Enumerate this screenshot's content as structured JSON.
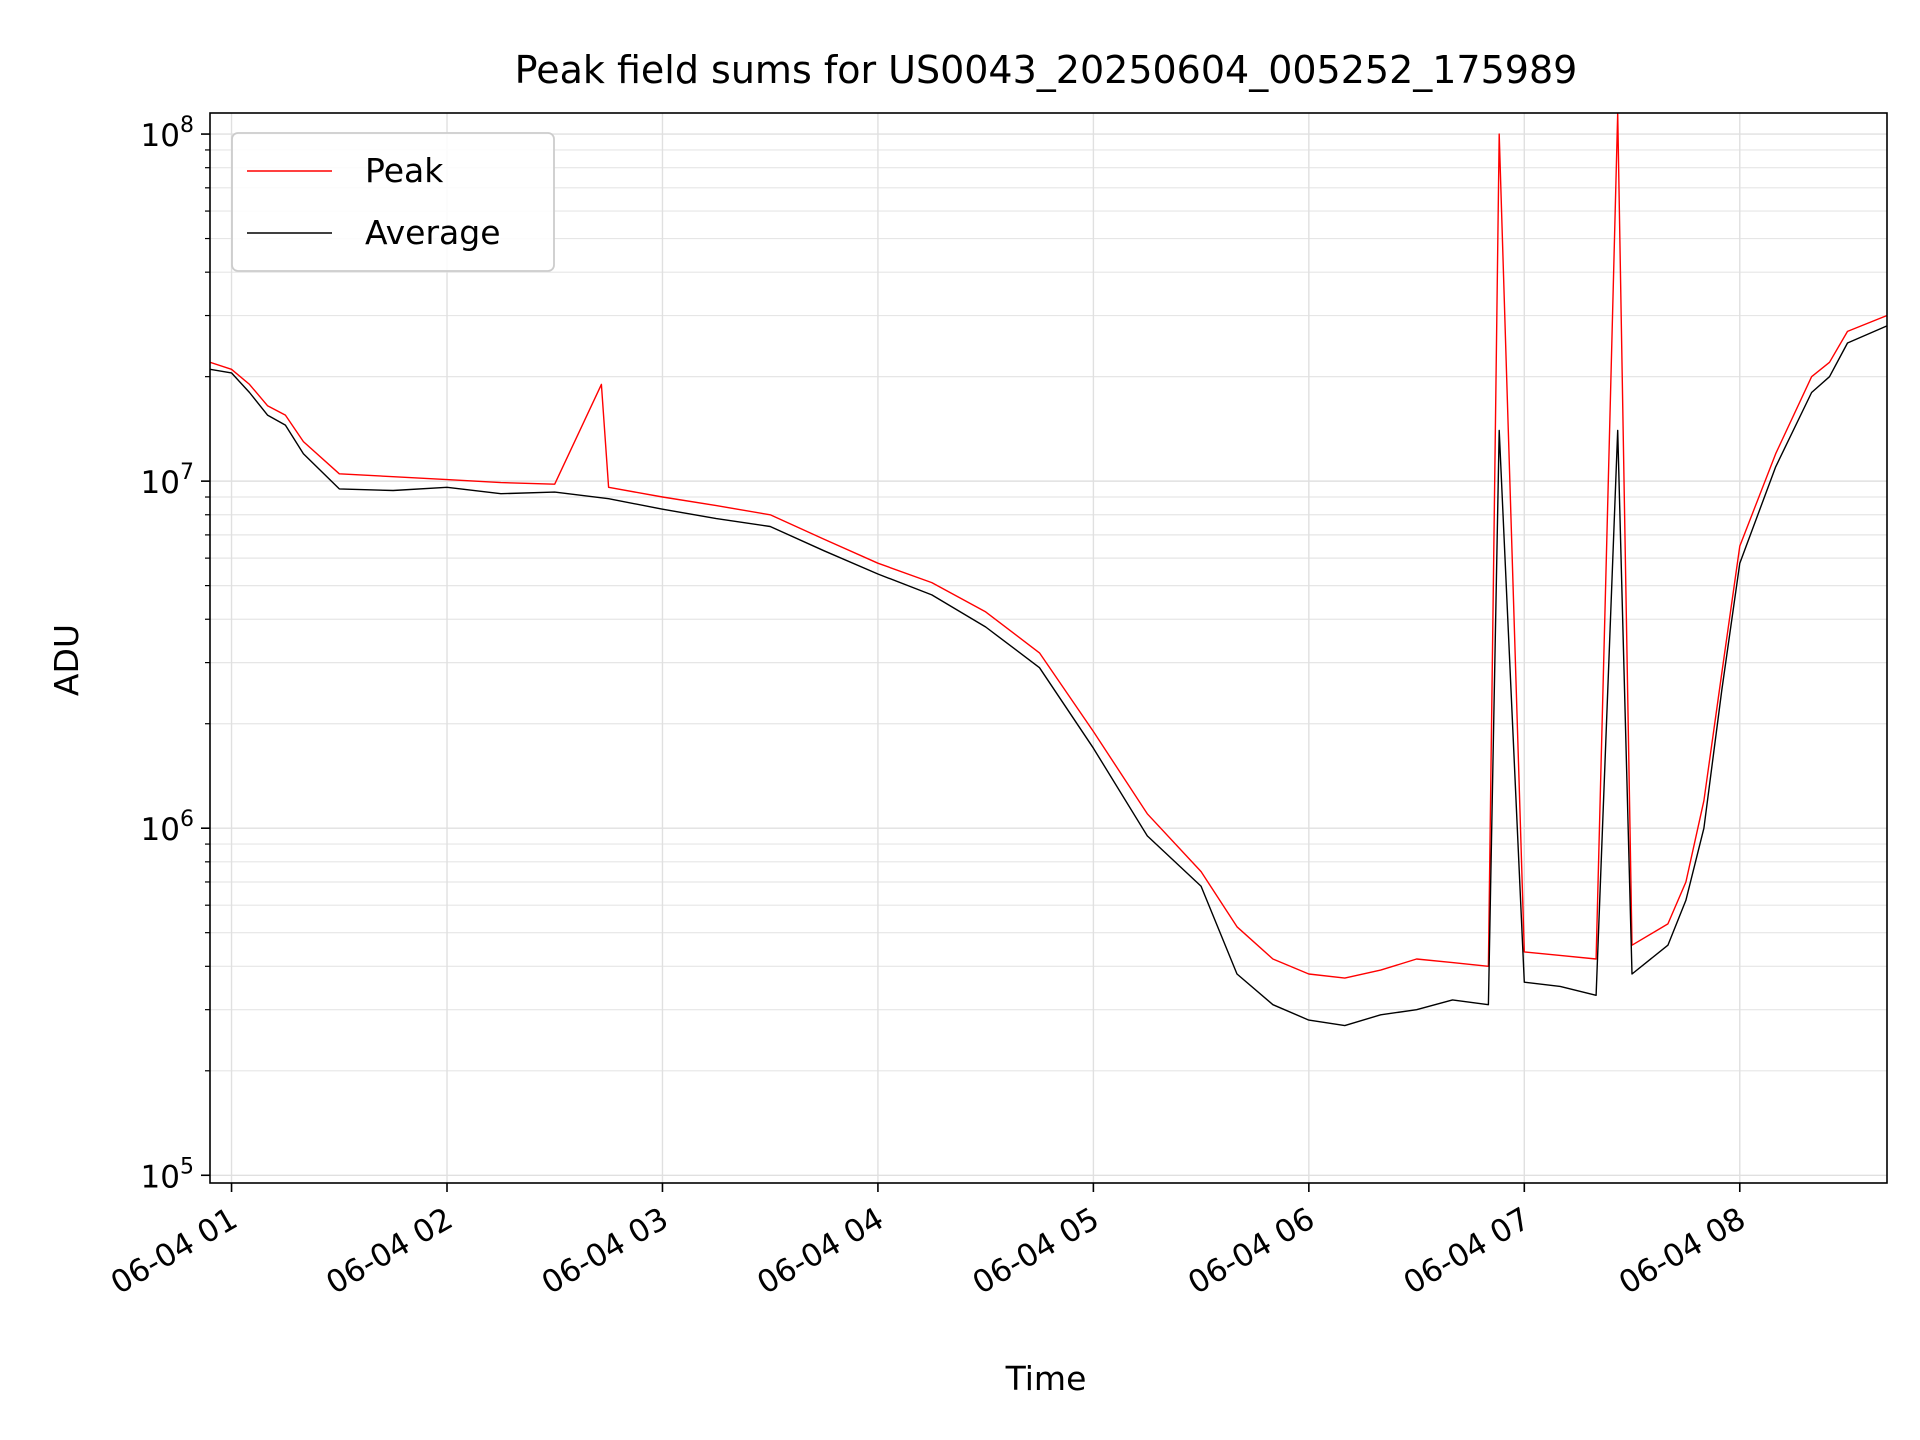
{
  "chart_data": {
    "type": "line",
    "title": "Peak field sums for US0043_20250604_005252_175989",
    "xlabel": "Time",
    "ylabel": "ADU",
    "yscale": "log",
    "ylim": [
      95000,
      115000000
    ],
    "xlim": [
      "2025-06-04 00:54",
      "2025-06-04 08:41"
    ],
    "x_ticks": [
      {
        "t": "2025-06-04 01:00",
        "label": "06-04 01"
      },
      {
        "t": "2025-06-04 02:00",
        "label": "06-04 02"
      },
      {
        "t": "2025-06-04 03:00",
        "label": "06-04 03"
      },
      {
        "t": "2025-06-04 04:00",
        "label": "06-04 04"
      },
      {
        "t": "2025-06-04 05:00",
        "label": "06-04 05"
      },
      {
        "t": "2025-06-04 06:00",
        "label": "06-04 06"
      },
      {
        "t": "2025-06-04 07:00",
        "label": "06-04 07"
      },
      {
        "t": "2025-06-04 08:00",
        "label": "06-04 08"
      }
    ],
    "y_ticks": [
      {
        "value": 100000,
        "base": "10",
        "exp": "5"
      },
      {
        "value": 1000000,
        "base": "10",
        "exp": "6"
      },
      {
        "value": 10000000,
        "base": "10",
        "exp": "7"
      },
      {
        "value": 100000000,
        "base": "10",
        "exp": "8"
      }
    ],
    "grid": true,
    "legend": {
      "placement": "top-left"
    },
    "series": [
      {
        "name": "Peak",
        "color": "#ff0000",
        "t": [
          "2025-06-04 00:54",
          "2025-06-04 01:00",
          "2025-06-04 01:05",
          "2025-06-04 01:10",
          "2025-06-04 01:15",
          "2025-06-04 01:20",
          "2025-06-04 01:30",
          "2025-06-04 01:45",
          "2025-06-04 02:00",
          "2025-06-04 02:15",
          "2025-06-04 02:30",
          "2025-06-04 02:43",
          "2025-06-04 02:45",
          "2025-06-04 03:00",
          "2025-06-04 03:15",
          "2025-06-04 03:30",
          "2025-06-04 03:45",
          "2025-06-04 04:00",
          "2025-06-04 04:15",
          "2025-06-04 04:30",
          "2025-06-04 04:45",
          "2025-06-04 05:00",
          "2025-06-04 05:15",
          "2025-06-04 05:30",
          "2025-06-04 05:40",
          "2025-06-04 05:50",
          "2025-06-04 06:00",
          "2025-06-04 06:10",
          "2025-06-04 06:20",
          "2025-06-04 06:30",
          "2025-06-04 06:40",
          "2025-06-04 06:50",
          "2025-06-04 06:53",
          "2025-06-04 07:00",
          "2025-06-04 07:10",
          "2025-06-04 07:20",
          "2025-06-04 07:26",
          "2025-06-04 07:30",
          "2025-06-04 07:40",
          "2025-06-04 07:45",
          "2025-06-04 07:50",
          "2025-06-04 07:55",
          "2025-06-04 08:00",
          "2025-06-04 08:10",
          "2025-06-04 08:20",
          "2025-06-04 08:25",
          "2025-06-04 08:30",
          "2025-06-04 08:41"
        ],
        "values": [
          22000000,
          21000000,
          19000000,
          16500000,
          15500000,
          13000000,
          10500000,
          10300000,
          10100000,
          9900000,
          9800000,
          19000000,
          9600000,
          9000000,
          8500000,
          8000000,
          6800000,
          5800000,
          5100000,
          4200000,
          3200000,
          1900000,
          1100000,
          750000,
          520000,
          420000,
          380000,
          370000,
          390000,
          420000,
          410000,
          400000,
          100000000,
          440000,
          430000,
          420000,
          115000000,
          460000,
          530000,
          700000,
          1200000,
          2800000,
          6500000,
          12000000,
          20000000,
          22000000,
          27000000,
          30000000
        ]
      },
      {
        "name": "Average",
        "color": "#000000",
        "t": [
          "2025-06-04 00:54",
          "2025-06-04 01:00",
          "2025-06-04 01:05",
          "2025-06-04 01:10",
          "2025-06-04 01:15",
          "2025-06-04 01:20",
          "2025-06-04 01:30",
          "2025-06-04 01:45",
          "2025-06-04 02:00",
          "2025-06-04 02:15",
          "2025-06-04 02:30",
          "2025-06-04 02:45",
          "2025-06-04 03:00",
          "2025-06-04 03:15",
          "2025-06-04 03:30",
          "2025-06-04 03:45",
          "2025-06-04 04:00",
          "2025-06-04 04:15",
          "2025-06-04 04:30",
          "2025-06-04 04:45",
          "2025-06-04 05:00",
          "2025-06-04 05:15",
          "2025-06-04 05:30",
          "2025-06-04 05:40",
          "2025-06-04 05:50",
          "2025-06-04 06:00",
          "2025-06-04 06:10",
          "2025-06-04 06:20",
          "2025-06-04 06:30",
          "2025-06-04 06:40",
          "2025-06-04 06:50",
          "2025-06-04 06:53",
          "2025-06-04 07:00",
          "2025-06-04 07:10",
          "2025-06-04 07:20",
          "2025-06-04 07:26",
          "2025-06-04 07:30",
          "2025-06-04 07:40",
          "2025-06-04 07:45",
          "2025-06-04 07:50",
          "2025-06-04 07:55",
          "2025-06-04 08:00",
          "2025-06-04 08:10",
          "2025-06-04 08:20",
          "2025-06-04 08:25",
          "2025-06-04 08:30",
          "2025-06-04 08:41"
        ],
        "values": [
          21000000,
          20500000,
          18000000,
          15500000,
          14500000,
          12000000,
          9500000,
          9400000,
          9600000,
          9200000,
          9300000,
          8900000,
          8300000,
          7800000,
          7400000,
          6300000,
          5400000,
          4700000,
          3800000,
          2900000,
          1700000,
          950000,
          680000,
          380000,
          310000,
          280000,
          270000,
          290000,
          300000,
          320000,
          310000,
          14000000,
          360000,
          350000,
          330000,
          14000000,
          380000,
          460000,
          620000,
          1000000,
          2500000,
          5800000,
          11000000,
          18000000,
          20000000,
          25000000,
          28000000
        ]
      }
    ]
  }
}
